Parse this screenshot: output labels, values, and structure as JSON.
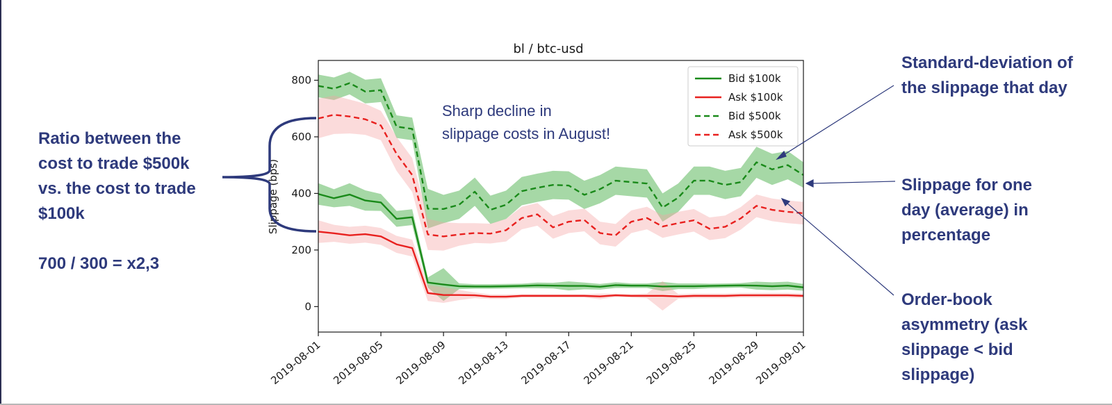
{
  "annotations": {
    "ratio": {
      "lines": [
        "Ratio between the",
        "cost to trade $500k",
        "vs. the cost to trade",
        "$100k"
      ],
      "formula": "700 / 300 = x2,3"
    },
    "stddev": {
      "lines": [
        "Standard-deviation of",
        "the slippage that day"
      ]
    },
    "slippage": {
      "lines": [
        "Slippage for one",
        "day (average) in",
        "percentage"
      ]
    },
    "orderbook": {
      "lines": [
        "Order-book",
        "asymmetry (ask",
        "slippage < bid",
        "slippage)"
      ]
    }
  },
  "colors": {
    "annotation": "#2e3a7c",
    "bid": "#1a8a1a",
    "ask": "#e8211f",
    "bid_band": "#5cb85c",
    "ask_band": "#f4a6a6"
  },
  "chart_data": {
    "type": "line",
    "title": "bl / btc-usd",
    "xlabel": "",
    "ylabel": "Slippage (bps)",
    "ylim": [
      -90,
      870
    ],
    "yticks": [
      0,
      200,
      400,
      600,
      800
    ],
    "x_start": "2019-08-01",
    "x_end": "2019-09-01",
    "xticks": [
      "2019-08-01",
      "2019-08-05",
      "2019-08-09",
      "2019-08-13",
      "2019-08-17",
      "2019-08-21",
      "2019-08-25",
      "2019-08-29",
      "2019-09-01"
    ],
    "xtick_days": [
      0,
      4,
      8,
      12,
      16,
      20,
      24,
      28,
      31
    ],
    "annotation": [
      "Sharp decline in",
      "slippage costs in August!"
    ],
    "legend_position": "top-right",
    "series": [
      {
        "name": "Bid $100k",
        "color": "#1a8a1a",
        "dash": false,
        "values": [
          398,
          383,
          396,
          375,
          368,
          310,
          316,
          85,
          78,
          72,
          71,
          71,
          72,
          73,
          75,
          74,
          73,
          73,
          70,
          76,
          74,
          74,
          71,
          72,
          72,
          73,
          74,
          75,
          74,
          72,
          74,
          68
        ],
        "std": [
          38,
          32,
          40,
          36,
          30,
          28,
          28,
          18,
          58,
          10,
          8,
          8,
          8,
          8,
          10,
          10,
          16,
          12,
          10,
          10,
          8,
          8,
          16,
          10,
          10,
          8,
          8,
          8,
          14,
          14,
          14,
          12
        ]
      },
      {
        "name": "Ask $100k",
        "color": "#e8211f",
        "dash": false,
        "values": [
          265,
          259,
          252,
          256,
          248,
          220,
          207,
          48,
          41,
          41,
          40,
          35,
          35,
          38,
          38,
          38,
          38,
          38,
          36,
          40,
          38,
          38,
          38,
          36,
          38,
          38,
          38,
          40,
          40,
          40,
          40,
          38
        ],
        "std": [
          40,
          30,
          30,
          30,
          30,
          30,
          30,
          28,
          28,
          18,
          10,
          8,
          8,
          6,
          6,
          6,
          6,
          6,
          10,
          6,
          6,
          8,
          52,
          8,
          8,
          8,
          8,
          8,
          8,
          8,
          8,
          8
        ]
      },
      {
        "name": "Bid $500k",
        "color": "#1a8a1a",
        "dash": true,
        "values": [
          780,
          770,
          790,
          760,
          765,
          636,
          628,
          346,
          345,
          360,
          406,
          342,
          360,
          408,
          420,
          430,
          428,
          395,
          415,
          445,
          440,
          435,
          350,
          385,
          445,
          445,
          430,
          440,
          510,
          485,
          500,
          465
        ],
        "std": [
          40,
          40,
          40,
          42,
          42,
          40,
          40,
          70,
          50,
          50,
          50,
          50,
          50,
          50,
          50,
          50,
          50,
          50,
          50,
          50,
          50,
          50,
          50,
          50,
          50,
          50,
          50,
          50,
          55,
          55,
          50,
          45
        ]
      },
      {
        "name": "Ask $500k",
        "color": "#e8211f",
        "dash": true,
        "values": [
          665,
          678,
          672,
          662,
          640,
          540,
          465,
          255,
          248,
          255,
          260,
          258,
          270,
          313,
          326,
          280,
          300,
          306,
          260,
          252,
          300,
          313,
          283,
          295,
          305,
          275,
          282,
          312,
          356,
          342,
          335,
          330
        ],
        "std": [
          70,
          68,
          60,
          55,
          52,
          60,
          60,
          55,
          50,
          40,
          35,
          35,
          40,
          40,
          40,
          40,
          40,
          40,
          40,
          40,
          40,
          40,
          40,
          40,
          40,
          40,
          40,
          40,
          40,
          40,
          40,
          40
        ]
      }
    ]
  }
}
